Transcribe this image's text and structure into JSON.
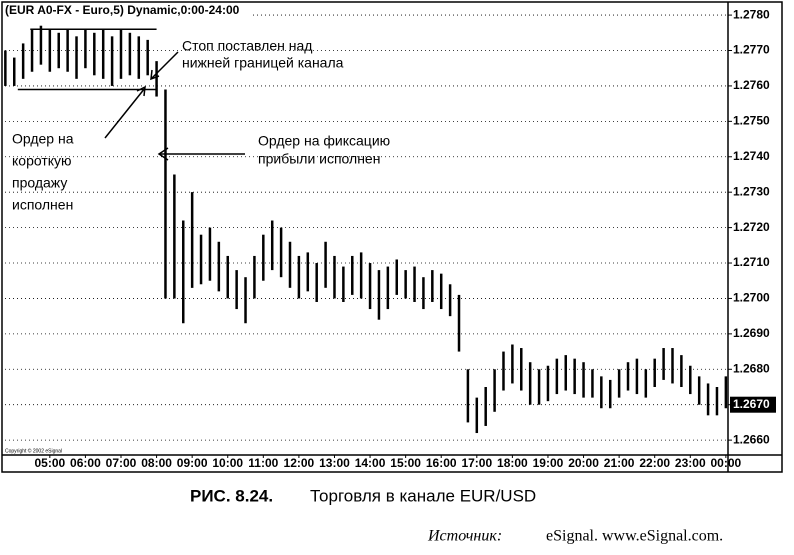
{
  "chart_data": {
    "type": "hilo",
    "title": "(EUR A0-FX - Euro,5) Dynamic,0:00-24:00",
    "copyright": "Copyright © 2002 eSignal",
    "color": "#000000",
    "grid": true,
    "x": [
      3.75,
      4,
      4.25,
      4.5,
      4.75,
      5,
      5.25,
      5.5,
      5.75,
      6,
      6.25,
      6.5,
      6.75,
      7,
      7.25,
      7.5,
      7.75,
      8,
      8.25,
      8.5,
      8.75,
      9,
      9.25,
      9.5,
      9.75,
      10,
      10.25,
      10.5,
      10.75,
      11,
      11.25,
      11.5,
      11.75,
      12,
      12.25,
      12.5,
      12.75,
      13,
      13.25,
      13.5,
      13.75,
      14,
      14.25,
      14.5,
      14.75,
      15,
      15.25,
      15.5,
      15.75,
      16,
      16.25,
      16.5,
      16.75,
      17,
      17.25,
      17.5,
      17.75,
      18,
      18.25,
      18.5,
      18.75,
      19,
      19.25,
      19.5,
      19.75,
      20,
      20.25,
      20.5,
      20.75,
      21,
      21.25,
      21.5,
      21.75,
      22,
      22.25,
      22.5,
      22.75,
      23,
      23.25,
      23.5,
      23.75,
      24
    ],
    "high": [
      1.277,
      1.2768,
      1.2772,
      1.2776,
      1.2777,
      1.2776,
      1.2775,
      1.2776,
      1.2774,
      1.2776,
      1.2775,
      1.2776,
      1.2774,
      1.2776,
      1.2775,
      1.2774,
      1.2773,
      1.2767,
      1.2759,
      1.2735,
      1.2722,
      1.273,
      1.2718,
      1.272,
      1.2716,
      1.2712,
      1.2708,
      1.2706,
      1.2712,
      1.2718,
      1.2722,
      1.272,
      1.2716,
      1.2712,
      1.2713,
      1.271,
      1.2716,
      1.2712,
      1.2709,
      1.2712,
      1.2713,
      1.271,
      1.2708,
      1.2709,
      1.2711,
      1.2708,
      1.2709,
      1.2706,
      1.2708,
      1.2707,
      1.2704,
      1.2701,
      1.268,
      1.2672,
      1.2675,
      1.268,
      1.2685,
      1.2687,
      1.2686,
      1.2682,
      1.268,
      1.2681,
      1.2683,
      1.2684,
      1.2683,
      1.2682,
      1.268,
      1.2678,
      1.2677,
      1.268,
      1.2682,
      1.2683,
      1.268,
      1.2683,
      1.2686,
      1.2686,
      1.2684,
      1.2681,
      1.2678,
      1.2676,
      1.2675,
      1.2678
    ],
    "low": [
      1.276,
      1.276,
      1.2762,
      1.2764,
      1.2766,
      1.2764,
      1.2765,
      1.2764,
      1.2762,
      1.2765,
      1.2763,
      1.2762,
      1.276,
      1.2762,
      1.2763,
      1.2762,
      1.2763,
      1.2757,
      1.27,
      1.27,
      1.2693,
      1.2703,
      1.2704,
      1.2705,
      1.2702,
      1.27,
      1.2697,
      1.2693,
      1.27,
      1.2705,
      1.2708,
      1.2706,
      1.2703,
      1.27,
      1.2702,
      1.2699,
      1.2703,
      1.27,
      1.2699,
      1.2701,
      1.27,
      1.2697,
      1.2694,
      1.2697,
      1.2701,
      1.27,
      1.2699,
      1.2697,
      1.2699,
      1.2697,
      1.2695,
      1.2685,
      1.2665,
      1.2662,
      1.2664,
      1.2668,
      1.2674,
      1.2676,
      1.2674,
      1.267,
      1.267,
      1.2671,
      1.2673,
      1.2674,
      1.2673,
      1.2672,
      1.2672,
      1.2669,
      1.2669,
      1.2672,
      1.2674,
      1.2673,
      1.2672,
      1.2675,
      1.2677,
      1.2676,
      1.2675,
      1.2673,
      1.267,
      1.2667,
      1.2667,
      1.2669
    ],
    "xlim": [
      3.74,
      24.06
    ],
    "xticks": [
      {
        "value": 5,
        "label": "05:00"
      },
      {
        "value": 6,
        "label": "06:00"
      },
      {
        "value": 7,
        "label": "07:00"
      },
      {
        "value": 8,
        "label": "08:00"
      },
      {
        "value": 9,
        "label": "09:00"
      },
      {
        "value": 10,
        "label": "10:00"
      },
      {
        "value": 11,
        "label": "11:00"
      },
      {
        "value": 12,
        "label": "12:00"
      },
      {
        "value": 13,
        "label": "13:00"
      },
      {
        "value": 14,
        "label": "14:00"
      },
      {
        "value": 15,
        "label": "15:00"
      },
      {
        "value": 16,
        "label": "16:00"
      },
      {
        "value": 17,
        "label": "17:00"
      },
      {
        "value": 18,
        "label": "18:00"
      },
      {
        "value": 19,
        "label": "19:00"
      },
      {
        "value": 20,
        "label": "20:00"
      },
      {
        "value": 21,
        "label": "21:00"
      },
      {
        "value": 22,
        "label": "22:00"
      },
      {
        "value": 23,
        "label": "23:00"
      },
      {
        "value": 24,
        "label": "00:00"
      }
    ],
    "ylim": [
      1.26558,
      1.2782
    ],
    "yticks": [
      {
        "value": 1.266,
        "label": "1.2660"
      },
      {
        "value": 1.267,
        "label": "1.2670"
      },
      {
        "value": 1.268,
        "label": "1.2680"
      },
      {
        "value": 1.269,
        "label": "1.2690"
      },
      {
        "value": 1.27,
        "label": "1.2700"
      },
      {
        "value": 1.271,
        "label": "1.2710"
      },
      {
        "value": 1.272,
        "label": "1.2720"
      },
      {
        "value": 1.273,
        "label": "1.2730"
      },
      {
        "value": 1.274,
        "label": "1.2740"
      },
      {
        "value": 1.275,
        "label": "1.2750"
      },
      {
        "value": 1.276,
        "label": "1.2760"
      },
      {
        "value": 1.277,
        "label": "1.2770"
      },
      {
        "value": 1.278,
        "label": "1.2780"
      }
    ],
    "last_price": {
      "value": 1.267,
      "label": "1.2670"
    },
    "channel_lines": [
      {
        "value": 1.2776,
        "x": [
          4.45,
          8.0
        ]
      },
      {
        "value": 1.2759,
        "x": [
          4.1,
          8.0
        ]
      }
    ],
    "annotations": [
      {
        "lines": [
          "Стоп поставлен над",
          "нижней границей канала"
        ]
      },
      {
        "lines": [
          "Ордер на",
          "короткую",
          "продажу",
          "исполнен"
        ]
      },
      {
        "lines": [
          "Ордер на фиксацию",
          "прибыли исполнен"
        ]
      }
    ]
  },
  "caption": {
    "number": "РИС. 8.24.",
    "text": "Торговля в канале EUR/USD"
  },
  "source": {
    "label": "Источник:",
    "text": "eSignal. www.eSignal.com."
  }
}
